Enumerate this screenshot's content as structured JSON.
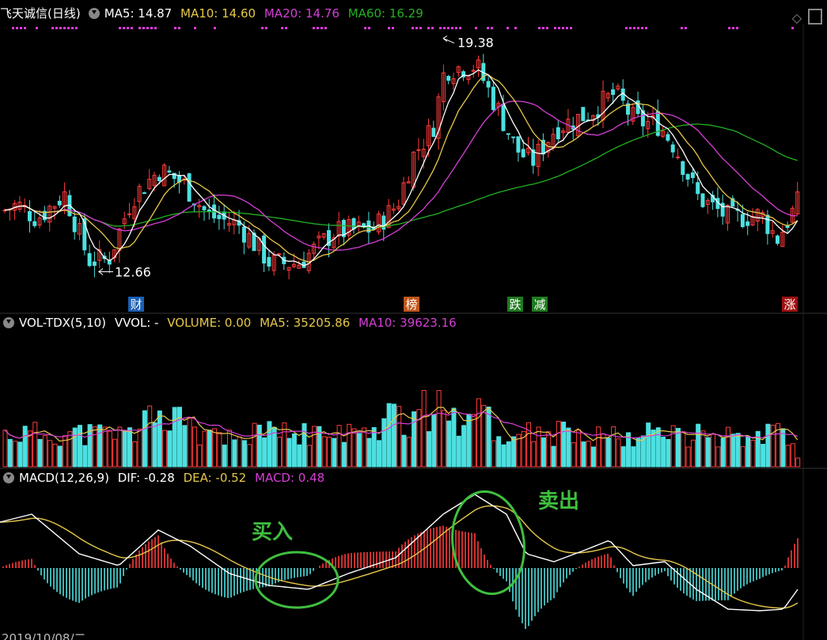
{
  "main_header": {
    "title": "飞天诚信(日线)",
    "ma5": "MA5: 14.87",
    "ma10": "MA10: 14.60",
    "ma20": "MA20: 14.76",
    "ma60": "MA60: 16.29"
  },
  "vol_header": {
    "title": "VOL-TDX(5,10)",
    "vvol": "VVOL: -",
    "volume": "VOLUME: 0.00",
    "ma5": "MA5: 35205.86",
    "ma10": "MA10: 39623.16"
  },
  "macd_header": {
    "title": "MACD(12,26,9)",
    "dif": "DIF: -0.28",
    "dea": "DEA: -0.52",
    "macd": "MACD: 0.48"
  },
  "annotations": {
    "high": "19.38",
    "low": "12.66",
    "buy": "买入",
    "sell": "卖出"
  },
  "event_markers": [
    {
      "label": "财",
      "color": "#1a5fb4"
    },
    {
      "label": "榜",
      "color": "#c0561a"
    },
    {
      "label": "跌",
      "color": "#1f7a1f"
    },
    {
      "label": "减",
      "color": "#1f7a1f"
    },
    {
      "label": "涨",
      "color": "#a01010"
    }
  ],
  "bottom_axis_text": "2019/10/08/二",
  "icons": [
    "diamond-icon",
    "panel-toggle-icon",
    "dropdown-icon"
  ],
  "colors": {
    "up": "#ff3b3b",
    "down": "#4de0e0",
    "ma5": "#ffffff",
    "ma10": "#e6c84a",
    "ma20": "#d63fd6",
    "ma60": "#22b022",
    "annotation": "#3fbf3f"
  },
  "chart_data": {
    "type": "candlestick",
    "price_range": [
      12.0,
      20.0
    ],
    "extremes": {
      "high": 19.38,
      "low": 12.66
    }
  }
}
